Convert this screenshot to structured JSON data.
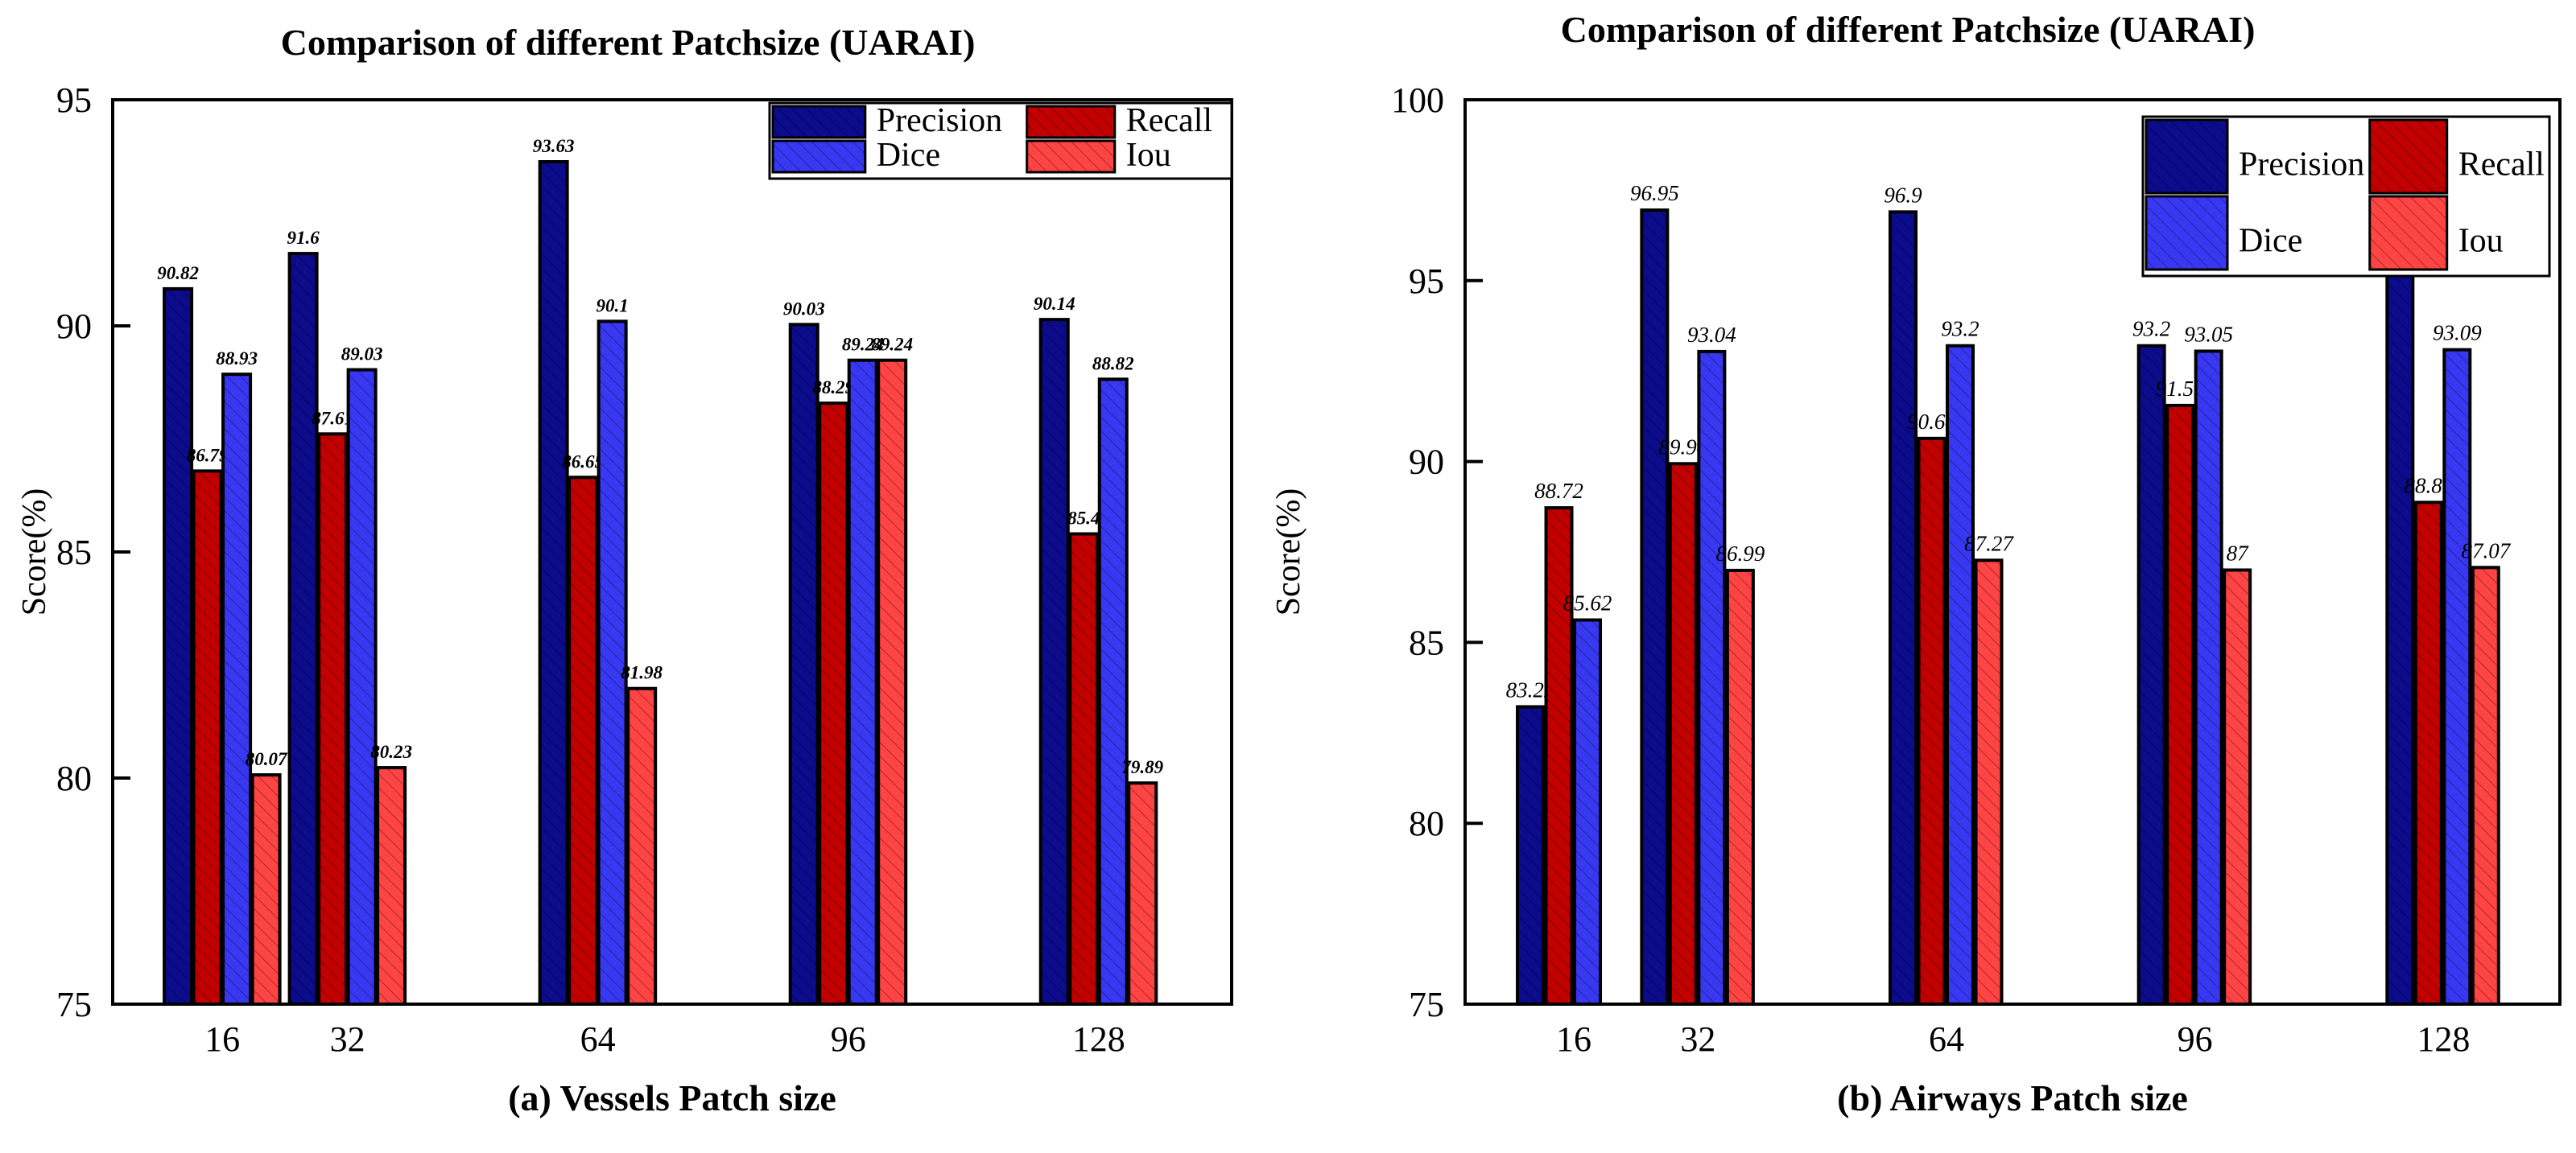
{
  "series_colors": {
    "Precision": "#0b0b8c",
    "Recall": "#c20000",
    "Dice": "#3838f2",
    "Iou": "#ff4444"
  },
  "chart_data": [
    {
      "type": "bar",
      "title": "Comparison of different Patchsize (UARAI)",
      "xlabel": "(a) Vessels Patch size",
      "ylabel": "Score(%)",
      "ylim": [
        75,
        95
      ],
      "yticks": [
        75,
        80,
        85,
        90,
        95
      ],
      "categories": [
        "16",
        "32",
        "64",
        "96",
        "128"
      ],
      "legend_position": "top-right",
      "grid": false,
      "hatch": "diagonal",
      "series": [
        {
          "name": "Precision",
          "values": [
            90.82,
            91.6,
            93.63,
            90.03,
            90.14
          ],
          "labels": [
            "90.82",
            "91.6",
            "93.63",
            "90.03",
            "90.14"
          ]
        },
        {
          "name": "Recall",
          "values": [
            86.79,
            87.61,
            86.65,
            88.29,
            85.4
          ],
          "labels": [
            "86.79",
            "87.61",
            "86.65",
            "88.29",
            "85.4"
          ]
        },
        {
          "name": "Dice",
          "values": [
            88.93,
            89.03,
            90.1,
            89.24,
            88.82
          ],
          "labels": [
            "88.93",
            "89.03",
            "90.1",
            "89.24",
            "88.82"
          ]
        },
        {
          "name": "Iou",
          "values": [
            80.07,
            80.23,
            81.98,
            89.24,
            79.89
          ],
          "labels": [
            "80.07",
            "80.23",
            "81.98",
            "89.24",
            "79.89"
          ]
        }
      ]
    },
    {
      "type": "bar",
      "title": "Comparison of different Patchsize (UARAI)",
      "xlabel": "(b) Airways Patch size",
      "ylabel": "Score(%)",
      "ylim": [
        75,
        100
      ],
      "yticks": [
        75,
        80,
        85,
        90,
        95,
        100
      ],
      "categories": [
        "16",
        "32",
        "64",
        "96",
        "128"
      ],
      "legend_position": "top-right",
      "grid": false,
      "hatch": "diagonal",
      "series": [
        {
          "name": "Precision",
          "values": [
            83.22,
            96.95,
            96.9,
            93.2,
            97.07
          ],
          "labels": [
            "83.22",
            "96.95",
            "96.9",
            "93.2",
            "97.07"
          ]
        },
        {
          "name": "Recall",
          "values": [
            88.72,
            89.94,
            90.64,
            91.55,
            88.87
          ],
          "labels": [
            "88.72",
            "89.94",
            "90.64",
            "91.55",
            "88.87"
          ]
        },
        {
          "name": "Dice",
          "values": [
            85.62,
            93.04,
            93.2,
            93.05,
            93.09
          ],
          "labels": [
            "85.62",
            "93.04",
            "93.2",
            "93.05",
            "93.09"
          ]
        },
        {
          "name": "Iou",
          "values": [
            null,
            86.99,
            87.27,
            87,
            87.07
          ],
          "labels": [
            null,
            "86.99",
            "87.27",
            "87",
            "87.07"
          ]
        }
      ]
    }
  ]
}
